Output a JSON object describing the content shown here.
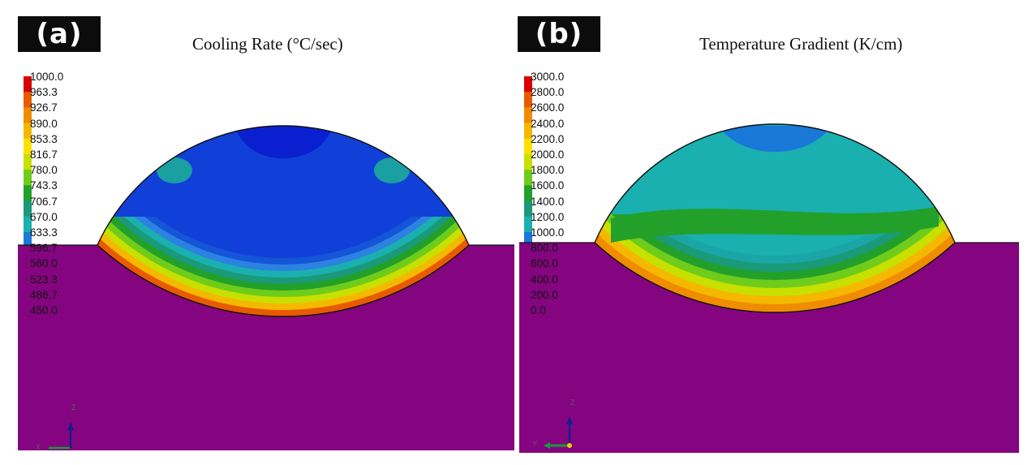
{
  "panels": [
    {
      "id": "a",
      "tag": "(a)",
      "title": "Cooling Rate (°C/sec)",
      "legend": [
        "1000.0",
        "963.3",
        "926.7",
        "890.0",
        "853.3",
        "816.7",
        "780.0",
        "743.3",
        "706.7",
        "670.0",
        "633.3",
        "596.7",
        "560.0",
        "523.3",
        "486.7",
        "450.0"
      ],
      "triad": [
        "Z",
        "X"
      ]
    },
    {
      "id": "b",
      "tag": "(b)",
      "title": "Temperature Gradient (K/cm)",
      "legend": [
        "3000.0",
        "2800.0",
        "2600.0",
        "2400.0",
        "2200.0",
        "2000.0",
        "1800.0",
        "1600.0",
        "1400.0",
        "1200.0",
        "1000.0",
        "800.0",
        "600.0",
        "400.0",
        "200.0",
        "0.0"
      ],
      "triad": [
        "Z",
        "Y"
      ]
    }
  ],
  "colors": {
    "scale": [
      "#d90000",
      "#e85a00",
      "#f08c00",
      "#f5b800",
      "#ffe000",
      "#c8e000",
      "#6fcc1a",
      "#22a02a",
      "#1a9a78",
      "#1ab0b0",
      "#1a78d8",
      "#0a4ee0",
      "#1010d0",
      "#6010d8",
      "#9a10c8",
      "#a01ca0"
    ],
    "substrate": "#84057f",
    "pool_a": [
      "#e85a00",
      "#f5b800",
      "#c8e000",
      "#6fcc1a",
      "#22a02a",
      "#1a9a78",
      "#1ab0b0",
      "#2c82e0",
      "#1555d8",
      "#1040d8"
    ],
    "pool_b": [
      "#f08c00",
      "#f5b800",
      "#c8e000",
      "#6fcc1a",
      "#22a02a",
      "#1a9a78",
      "#1aa6a6",
      "#1ab0b0"
    ]
  }
}
